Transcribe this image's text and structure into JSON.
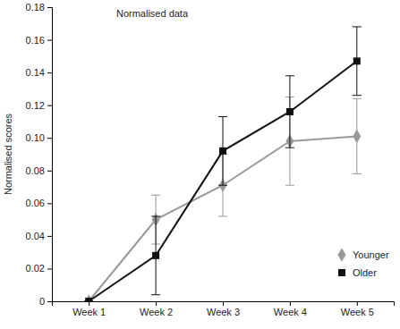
{
  "chart_data": {
    "type": "line",
    "title": "Normalised data",
    "y_label": "Normalised scores",
    "categories": [
      "Week 1",
      "Week 2",
      "Week 3",
      "Week 4",
      "Week 5"
    ],
    "series": [
      {
        "name": "Younger",
        "color": "#999999",
        "marker": "diamond",
        "line_style": "solid",
        "values": [
          0,
          0.05,
          0.071,
          0.098,
          0.101
        ],
        "errors": [
          0,
          0.015,
          0.019,
          0.027,
          0.023
        ]
      },
      {
        "name": "Older",
        "color": "#111111",
        "marker": "square",
        "line_style": "solid",
        "values": [
          0,
          0.028,
          0.092,
          0.116,
          0.147
        ],
        "errors": [
          0,
          0.024,
          0.021,
          0.022,
          0.021
        ]
      }
    ],
    "ylim": [
      0,
      0.18
    ],
    "yticks": [
      0,
      0.02,
      0.04,
      0.06,
      0.08,
      {
        "value": 0.1,
        "label": "0.10"
      },
      0.12,
      0.14,
      0.16,
      0.18
    ],
    "grid": false,
    "legend": "bottom-right"
  }
}
